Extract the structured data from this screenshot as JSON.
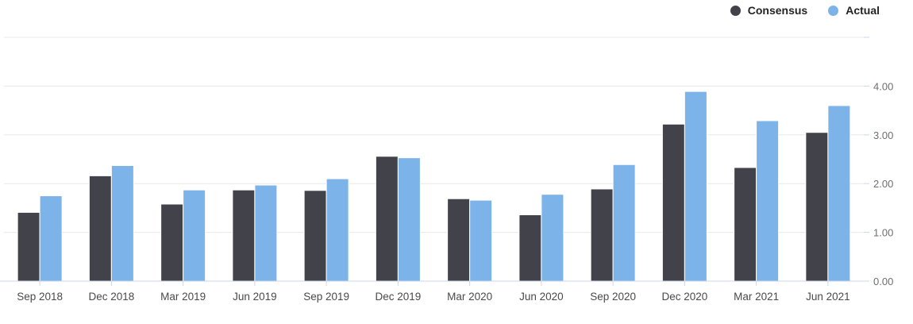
{
  "legend": {
    "items": [
      {
        "label": "Consensus",
        "color": "#42434a"
      },
      {
        "label": "Actual",
        "color": "#7cb3e8"
      }
    ]
  },
  "chart_data": {
    "type": "bar",
    "title": "",
    "categories": [
      "Sep 2018",
      "Dec 2018",
      "Mar 2019",
      "Jun 2019",
      "Sep 2019",
      "Dec 2019",
      "Mar 2020",
      "Jun 2020",
      "Sep 2020",
      "Dec 2020",
      "Mar 2021",
      "Jun 2021"
    ],
    "series": [
      {
        "name": "Consensus",
        "color": "#42434a",
        "values": [
          1.41,
          2.16,
          1.58,
          1.87,
          1.86,
          2.56,
          1.69,
          1.36,
          1.89,
          3.22,
          2.33,
          3.05
        ]
      },
      {
        "name": "Actual",
        "color": "#7cb3e8",
        "values": [
          1.75,
          2.37,
          1.87,
          1.97,
          2.1,
          2.53,
          1.66,
          1.78,
          2.39,
          3.89,
          3.29,
          3.6
        ]
      }
    ],
    "xlabel": "",
    "ylabel": "",
    "ylim": [
      0,
      5
    ],
    "ytick_labels": [
      "0.00",
      "1.00",
      "2.00",
      "3.00",
      "4.00"
    ],
    "grid": true,
    "legend_position": "top-right",
    "colors": {
      "gridline": "#e8e8e8",
      "axis_line": "#ccd6eb",
      "y_label_text": "#6f6f6f",
      "x_label_text": "#4a4a4a",
      "background": "#ffffff",
      "bar_border": "#ffffff"
    }
  }
}
